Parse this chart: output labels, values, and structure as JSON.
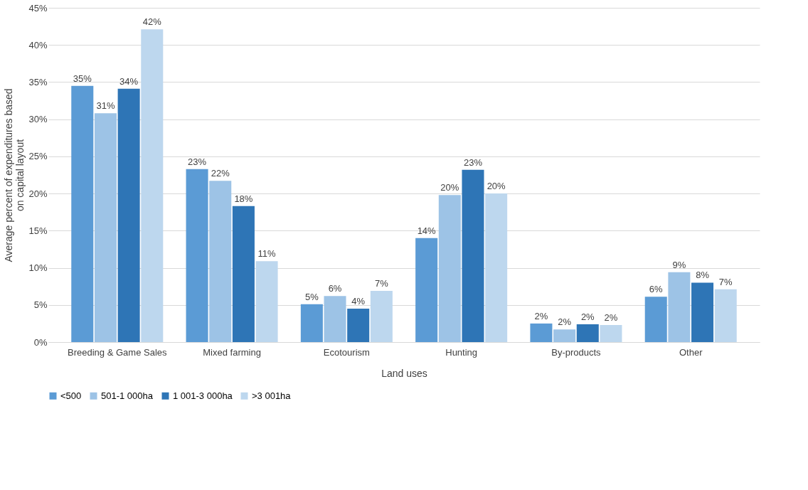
{
  "chart_data": {
    "type": "bar",
    "xlabel": "Land uses",
    "ylabel": "Average percent of expenditures based on capital layout",
    "categories": [
      "Breeding & Game Sales",
      "Mixed farming",
      "Ecotourism",
      "Hunting",
      "By-products",
      "Other"
    ],
    "series": [
      {
        "name": "<500",
        "color": "#5b9bd5",
        "values": [
          34.5,
          23.3,
          5.1,
          14.0,
          2.5,
          6.1
        ],
        "value_labels": [
          "35%",
          "23%",
          "5%",
          "14%",
          "2%",
          "6%"
        ]
      },
      {
        "name": "501-1 000ha",
        "color": "#9dc3e6",
        "values": [
          30.8,
          21.7,
          6.2,
          19.8,
          1.7,
          9.4
        ],
        "value_labels": [
          "31%",
          "22%",
          "6%",
          "20%",
          "2%",
          "9%"
        ]
      },
      {
        "name": "1 001-3 000ha",
        "color": "#2e75b6",
        "values": [
          34.1,
          18.3,
          4.5,
          23.2,
          2.4,
          8.0
        ],
        "value_labels": [
          "34%",
          "18%",
          "4%",
          "23%",
          "2%",
          "8%"
        ]
      },
      {
        "name": ">3 001ha",
        "color": "#bdd7ee",
        "values": [
          42.1,
          10.9,
          6.9,
          20.0,
          2.3,
          7.1
        ],
        "value_labels": [
          "42%",
          "11%",
          "7%",
          "20%",
          "2%",
          "7%"
        ]
      }
    ],
    "ylim": [
      0,
      45
    ],
    "yticks": [
      {
        "value": 0,
        "label": "0%"
      },
      {
        "value": 5,
        "label": "5%"
      },
      {
        "value": 10,
        "label": "10%"
      },
      {
        "value": 15,
        "label": "15%"
      },
      {
        "value": 20,
        "label": "20%"
      },
      {
        "value": 25,
        "label": "25%"
      },
      {
        "value": 30,
        "label": "30%"
      },
      {
        "value": 35,
        "label": "35%"
      },
      {
        "value": 40,
        "label": "40%"
      },
      {
        "value": 45,
        "label": "45%"
      }
    ],
    "grid": "y",
    "legend": "bottom"
  }
}
